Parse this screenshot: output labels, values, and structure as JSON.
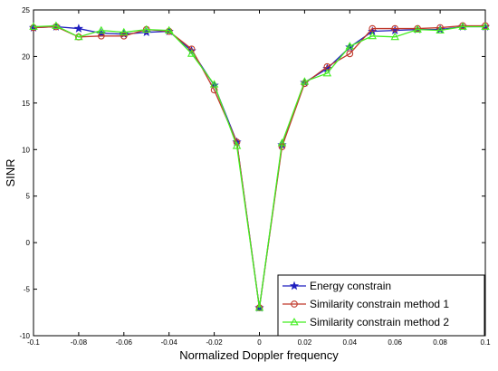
{
  "chart_data": {
    "type": "line",
    "xlabel": "Normalized Doppler frequency",
    "ylabel": "SINR",
    "xlim": [
      -0.1,
      0.1
    ],
    "ylim": [
      -10,
      25
    ],
    "xticks": [
      "-0.1",
      "-0.08",
      "-0.06",
      "-0.04",
      "-0.02",
      "0",
      "0.02",
      "0.04",
      "0.06",
      "0.08",
      "0.1"
    ],
    "yticks": [
      "-10",
      "-5",
      "0",
      "5",
      "10",
      "15",
      "20",
      "25"
    ],
    "grid": false,
    "legend_position": "bottom-right",
    "x": [
      -0.1,
      -0.09,
      -0.08,
      -0.07,
      -0.06,
      -0.05,
      -0.04,
      -0.03,
      -0.02,
      -0.01,
      0,
      0.01,
      0.02,
      0.03,
      0.04,
      0.05,
      0.06,
      0.07,
      0.08,
      0.09,
      0.1
    ],
    "series": [
      {
        "name": "Energy constrain",
        "color": "#1f1fbf",
        "marker": "star",
        "values": [
          23.1,
          23.2,
          23.0,
          22.5,
          22.4,
          22.6,
          22.7,
          20.6,
          16.9,
          10.8,
          -7.0,
          10.5,
          17.2,
          18.7,
          21.0,
          22.7,
          22.8,
          22.9,
          22.9,
          23.2,
          23.2
        ]
      },
      {
        "name": "Similarity constrain method 1",
        "color": "#c0392b",
        "marker": "circle",
        "values": [
          23.1,
          23.2,
          22.1,
          22.2,
          22.2,
          22.9,
          22.7,
          20.8,
          16.4,
          10.8,
          -7.0,
          10.3,
          17.1,
          18.9,
          20.3,
          23.0,
          23.0,
          23.0,
          23.1,
          23.3,
          23.3
        ]
      },
      {
        "name": "Similarity constrain method 2",
        "color": "#44ee22",
        "marker": "triangle",
        "values": [
          23.2,
          23.3,
          22.1,
          22.8,
          22.6,
          22.9,
          22.8,
          20.3,
          17.0,
          10.4,
          -7.0,
          10.7,
          17.3,
          18.2,
          21.1,
          22.2,
          22.1,
          22.9,
          22.8,
          23.2,
          23.2
        ]
      }
    ]
  }
}
